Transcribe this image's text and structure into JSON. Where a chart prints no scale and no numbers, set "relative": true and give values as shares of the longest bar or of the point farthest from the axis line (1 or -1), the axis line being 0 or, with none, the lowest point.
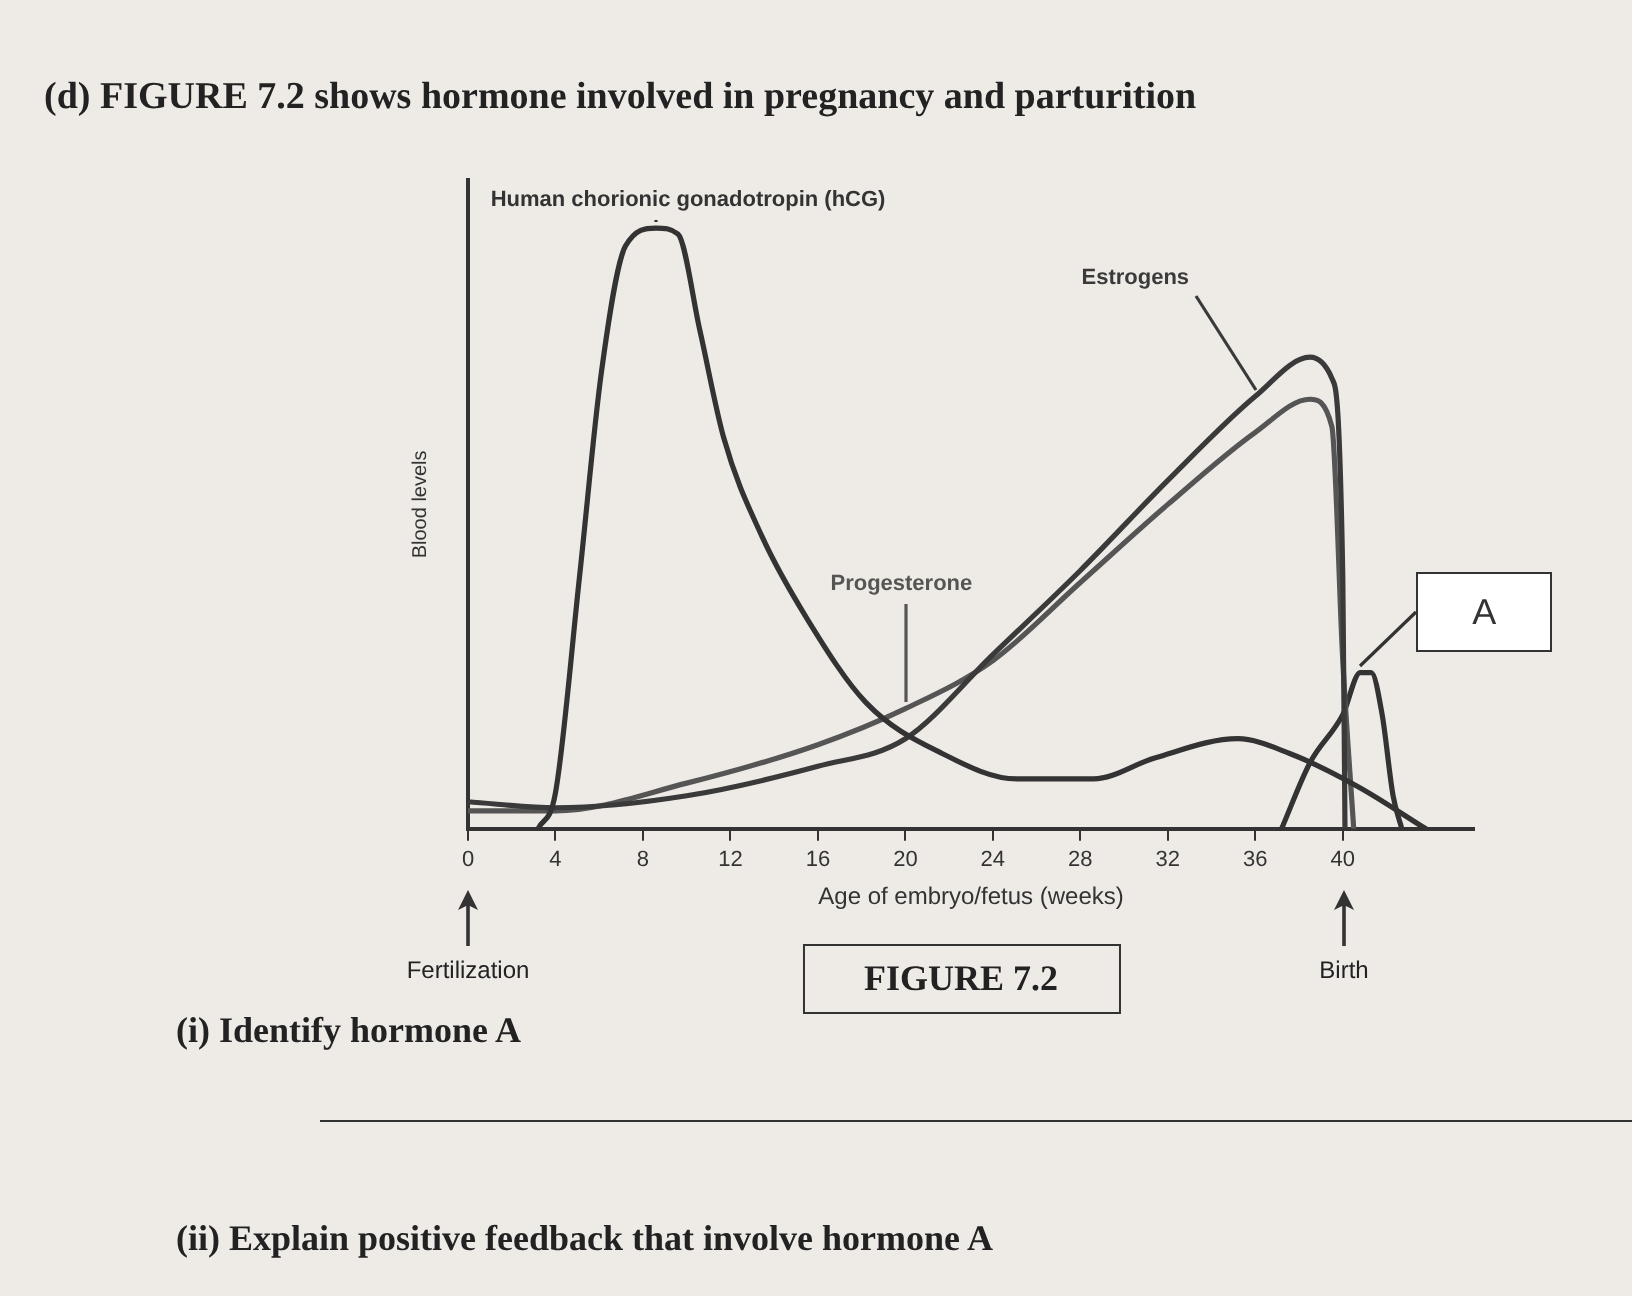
{
  "chart_data": {
    "type": "line",
    "title": "(d) FIGURE 7.2 shows hormone involved in pregnancy and parturition",
    "xlabel": "Age of embryo/fetus (weeks)",
    "ylabel": "Blood levels",
    "relative": true,
    "xlim": [
      0,
      46
    ],
    "xticks": [
      0,
      4,
      8,
      12,
      16,
      20,
      24,
      28,
      32,
      36,
      40
    ],
    "grid": false,
    "legend": false,
    "marker": "none",
    "line_style": "solid",
    "series": [
      {
        "name": "Human chorionic gonadotropin (hCG)",
        "color": "#333333",
        "x": [
          3.2,
          4,
          5.1,
          6.1,
          7.2,
          8.6,
          9.6,
          10.6,
          11.7,
          13.4,
          15.5,
          18.2,
          21.7,
          25.1,
          28.6,
          31.4,
          35.2,
          37.6,
          40.7,
          43.8
        ],
        "values": [
          0,
          0.06,
          0.42,
          0.76,
          0.97,
          1,
          0.99,
          0.83,
          0.65,
          0.49,
          0.35,
          0.21,
          0.125,
          0.083,
          0.083,
          0.118,
          0.15,
          0.125,
          0.07,
          0
        ]
      },
      {
        "name": "Estrogens",
        "color": "#3a3a3a",
        "x": [
          0,
          4,
          10,
          16,
          20,
          24,
          28,
          32,
          36,
          38.5,
          39.5,
          40,
          40.1
        ],
        "values": [
          0.045,
          0.035,
          0.055,
          0.104,
          0.15,
          0.29,
          0.43,
          0.58,
          0.72,
          0.785,
          0.75,
          0.42,
          0
        ]
      },
      {
        "name": "Progesterone",
        "color": "#555555",
        "x": [
          0,
          4,
          10,
          16,
          20,
          24,
          28,
          32,
          36,
          38.5,
          39.5,
          40,
          40.5
        ],
        "values": [
          0.03,
          0.03,
          0.076,
          0.14,
          0.2,
          0.28,
          0.41,
          0.54,
          0.66,
          0.715,
          0.67,
          0.28,
          0
        ]
      },
      {
        "name": "A",
        "color": "#333333",
        "x": [
          37.2,
          38.5,
          40,
          40.8,
          41.3,
          41.8,
          42.3,
          42.7
        ],
        "values": [
          0,
          0.11,
          0.19,
          0.26,
          0.26,
          0.19,
          0.055,
          0
        ]
      }
    ],
    "annotations": [
      "Fertilization",
      "Birth",
      "FIGURE 7.2",
      "(i) Identify hormone A",
      "(ii) Explain positive feedback that involve hormone A"
    ]
  }
}
